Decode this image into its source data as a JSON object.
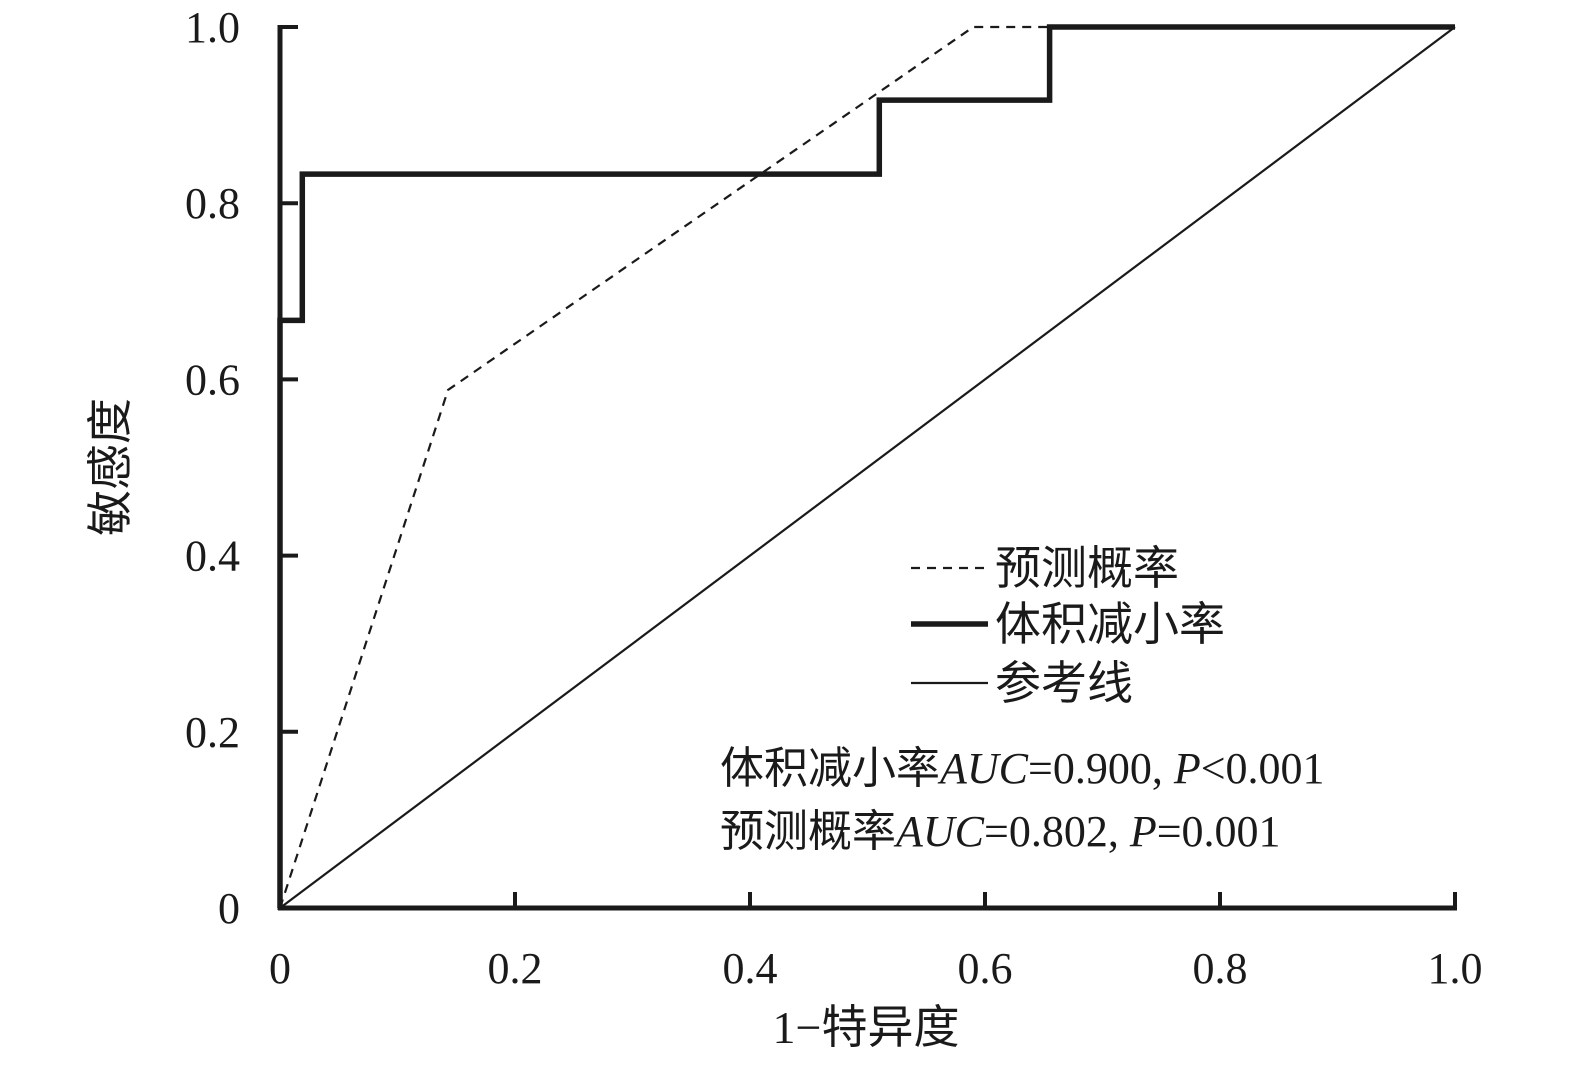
{
  "chart_data": {
    "type": "line",
    "xlabel": "1−特异度",
    "ylabel": "敏感度",
    "xlim": [
      0,
      1
    ],
    "ylim": [
      0,
      1
    ],
    "x_ticks": [
      "0",
      "0.2",
      "0.4",
      "0.6",
      "0.8",
      "1.0"
    ],
    "y_ticks": [
      "0",
      "0.2",
      "0.4",
      "0.6",
      "0.8",
      "1.0"
    ],
    "grid": false,
    "legend_position": "lower-right",
    "series": [
      {
        "name": "预测概率",
        "style": "dashed",
        "color": "#1a1a1a",
        "points": [
          [
            0,
            0
          ],
          [
            0.143,
            0.588
          ],
          [
            0.59,
            1.0
          ],
          [
            1.0,
            1.0
          ]
        ]
      },
      {
        "name": "体积减小率",
        "style": "thick",
        "color": "#1a1a1a",
        "points": [
          [
            0,
            0
          ],
          [
            0,
            0.667
          ],
          [
            0.019,
            0.667
          ],
          [
            0.019,
            0.833
          ],
          [
            0.51,
            0.833
          ],
          [
            0.51,
            0.917
          ],
          [
            0.655,
            0.917
          ],
          [
            0.655,
            1.0
          ],
          [
            1.0,
            1.0
          ]
        ]
      },
      {
        "name": "参考线",
        "style": "thin",
        "color": "#1a1a1a",
        "points": [
          [
            0,
            0
          ],
          [
            1,
            1
          ]
        ]
      }
    ],
    "annotations": [
      {
        "parts": [
          {
            "text": "体积减小率",
            "italic": false
          },
          {
            "text": "AUC",
            "italic": true
          },
          {
            "text": "=0.900, ",
            "italic": false
          },
          {
            "text": "P",
            "italic": true
          },
          {
            "text": "<0.001",
            "italic": false
          }
        ]
      },
      {
        "parts": [
          {
            "text": "预测概率",
            "italic": false
          },
          {
            "text": "AUC",
            "italic": true
          },
          {
            "text": "=0.802, ",
            "italic": false
          },
          {
            "text": "P",
            "italic": true
          },
          {
            "text": "=0.001",
            "italic": false
          }
        ]
      }
    ]
  }
}
